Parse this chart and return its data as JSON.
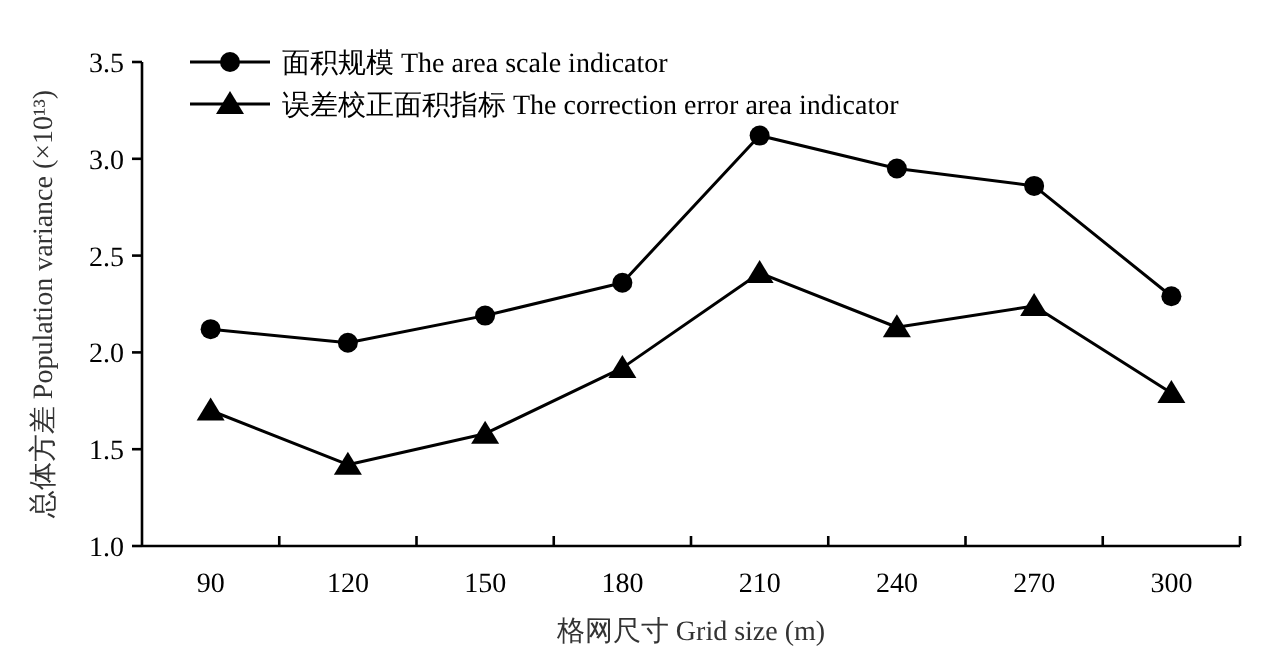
{
  "chart_data": {
    "type": "line",
    "xlabel": "格网尺寸 Grid size (m)",
    "ylabel": "总体方差 Population variance (×10¹³)",
    "categories": [
      "90",
      "120",
      "150",
      "180",
      "210",
      "240",
      "270",
      "300"
    ],
    "series": [
      {
        "name": "面积规模 The area scale indicator",
        "color": "#000000",
        "marker": "circle",
        "values": [
          2.12,
          2.05,
          2.19,
          2.36,
          3.12,
          2.95,
          2.86,
          2.29
        ]
      },
      {
        "name": "误差校正面积指标 The correction error area indicator",
        "color": "#000000",
        "marker": "triangle",
        "values": [
          1.7,
          1.42,
          1.58,
          1.92,
          2.41,
          2.13,
          2.24,
          1.79
        ]
      }
    ],
    "ylim": [
      1.0,
      3.5
    ],
    "yticks": [
      {
        "value": 1.0,
        "label": "1.0"
      },
      {
        "value": 1.5,
        "label": "1.5"
      },
      {
        "value": 2.0,
        "label": "2.0"
      },
      {
        "value": 2.5,
        "label": "2.5"
      },
      {
        "value": 3.0,
        "label": "3.0"
      },
      {
        "value": 3.5,
        "label": "3.5"
      }
    ],
    "grid": false,
    "legend": "top left",
    "line_style": "solid"
  }
}
